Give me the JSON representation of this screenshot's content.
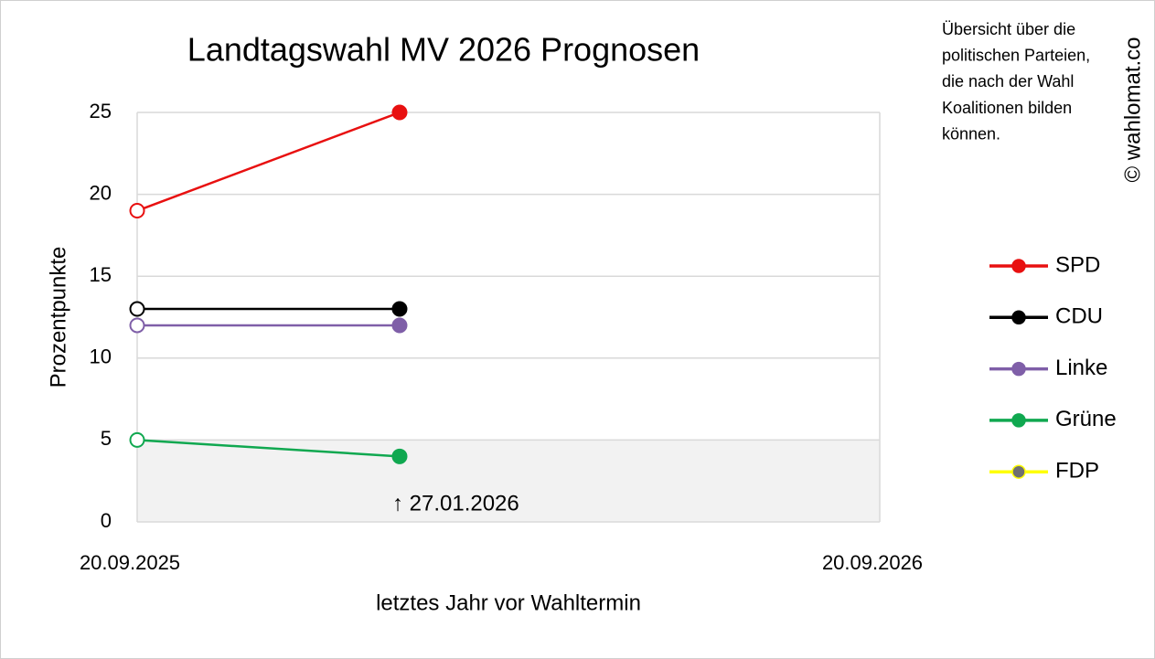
{
  "chart_data": {
    "type": "line",
    "title": "Landtagswahl MV 2026 Prognosen",
    "ylabel": "Prozentpunkte",
    "xlabel": "letztes Jahr vor Wahltermin",
    "x": [
      "20.09.2025",
      "27.01.2026"
    ],
    "xlim": [
      "20.09.2025",
      "20.09.2026"
    ],
    "xticks": [
      "20.09.2025",
      "20.09.2026"
    ],
    "ylim": [
      0,
      25
    ],
    "yticks": [
      0,
      5,
      10,
      15,
      20,
      25
    ],
    "grid": true,
    "shaded_band": [
      0,
      5
    ],
    "series": [
      {
        "name": "SPD",
        "color": "#e81010",
        "values": [
          19,
          25
        ]
      },
      {
        "name": "CDU",
        "color": "#000000",
        "values": [
          13,
          13
        ]
      },
      {
        "name": "Linke",
        "color": "#7f5fa8",
        "values": [
          12,
          12
        ]
      },
      {
        "name": "Grüne",
        "color": "#10a850",
        "values": [
          5,
          4
        ]
      },
      {
        "name": "FDP",
        "color": "#ffff00",
        "values": [
          null,
          null
        ]
      }
    ],
    "annotations": [
      {
        "text": "↑ 27.01.2026",
        "x": "27.01.2026"
      }
    ],
    "note_lines": [
      "Übersicht über die",
      "politischen Parteien,",
      "die nach der Wahl",
      "Koalitionen bilden",
      "können."
    ],
    "copyright": "© wahlomat.co"
  }
}
